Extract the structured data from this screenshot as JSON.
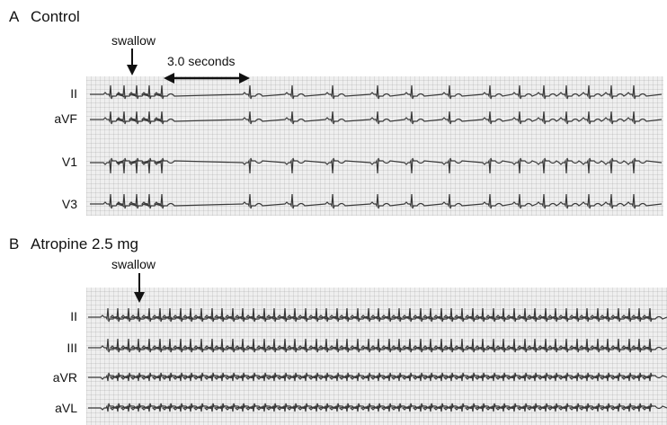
{
  "panel_a": {
    "letter": "A",
    "title": "Control",
    "annotation": "swallow",
    "interval_label": "3.0 seconds",
    "leads": [
      "II",
      "aVF",
      "V1",
      "V3"
    ]
  },
  "panel_b": {
    "letter": "B",
    "title": "Atropine 2.5 mg",
    "annotation": "swallow",
    "leads": [
      "II",
      "III",
      "aVR",
      "aVL"
    ]
  },
  "colors": {
    "trace": "#3a3a3a",
    "paper": "#efefef",
    "grid": "#c8c8c8"
  }
}
